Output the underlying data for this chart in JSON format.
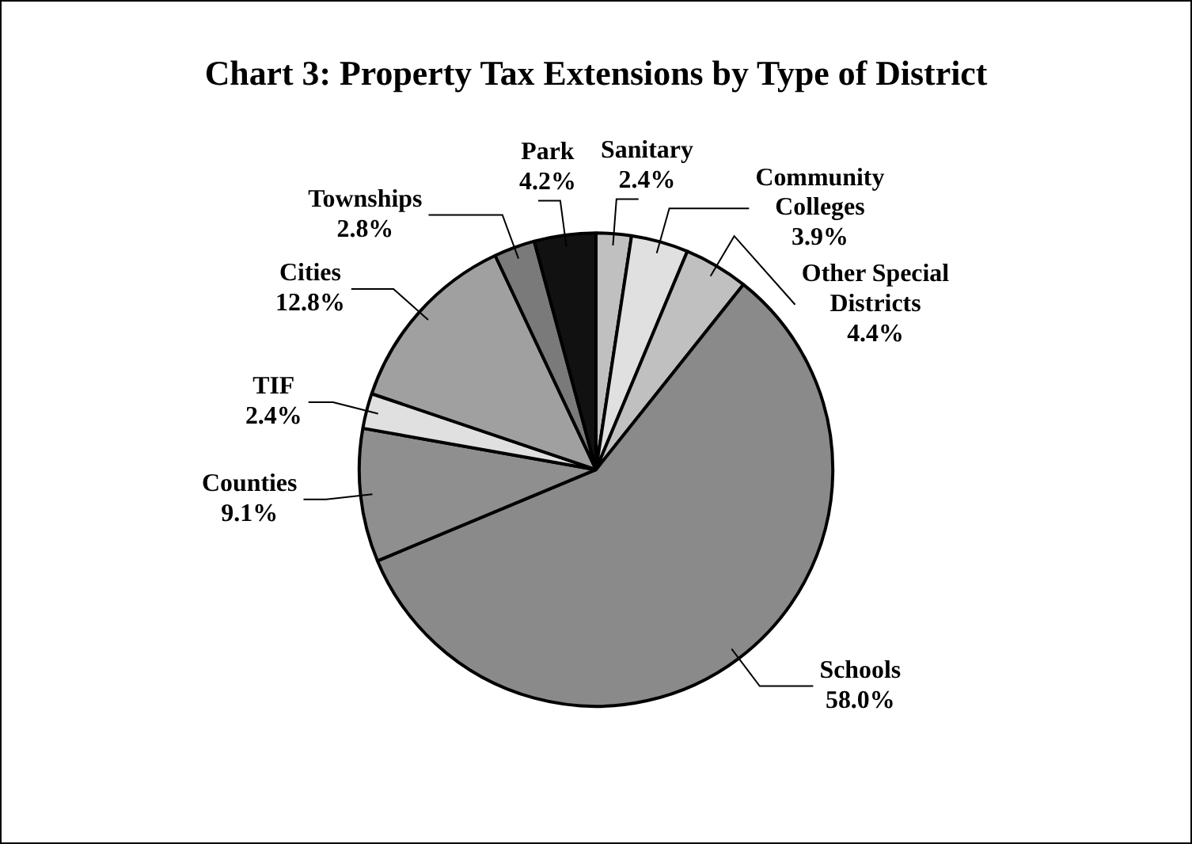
{
  "chart_data": {
    "type": "pie",
    "title": "Chart 3: Property Tax Extensions by Type of District",
    "categories": [
      "Sanitary",
      "Community Colleges",
      "Other Special Districts",
      "Schools",
      "Counties",
      "TIF",
      "Cities",
      "Townships",
      "Park"
    ],
    "values": [
      2.4,
      3.9,
      4.4,
      58.0,
      9.1,
      2.4,
      12.8,
      2.8,
      4.2
    ],
    "value_labels": [
      "2.4%",
      "3.9%",
      "4.4%",
      "58.0%",
      "9.1%",
      "2.4%",
      "12.8%",
      "2.8%",
      "4.2%"
    ],
    "colors": [
      "#c0c0c0",
      "#e0e0e0",
      "#c0c0c0",
      "#8a8a8a",
      "#8f8f8f",
      "#e0e0e0",
      "#a0a0a0",
      "#7a7a7a",
      "#111111"
    ],
    "legend": false
  }
}
